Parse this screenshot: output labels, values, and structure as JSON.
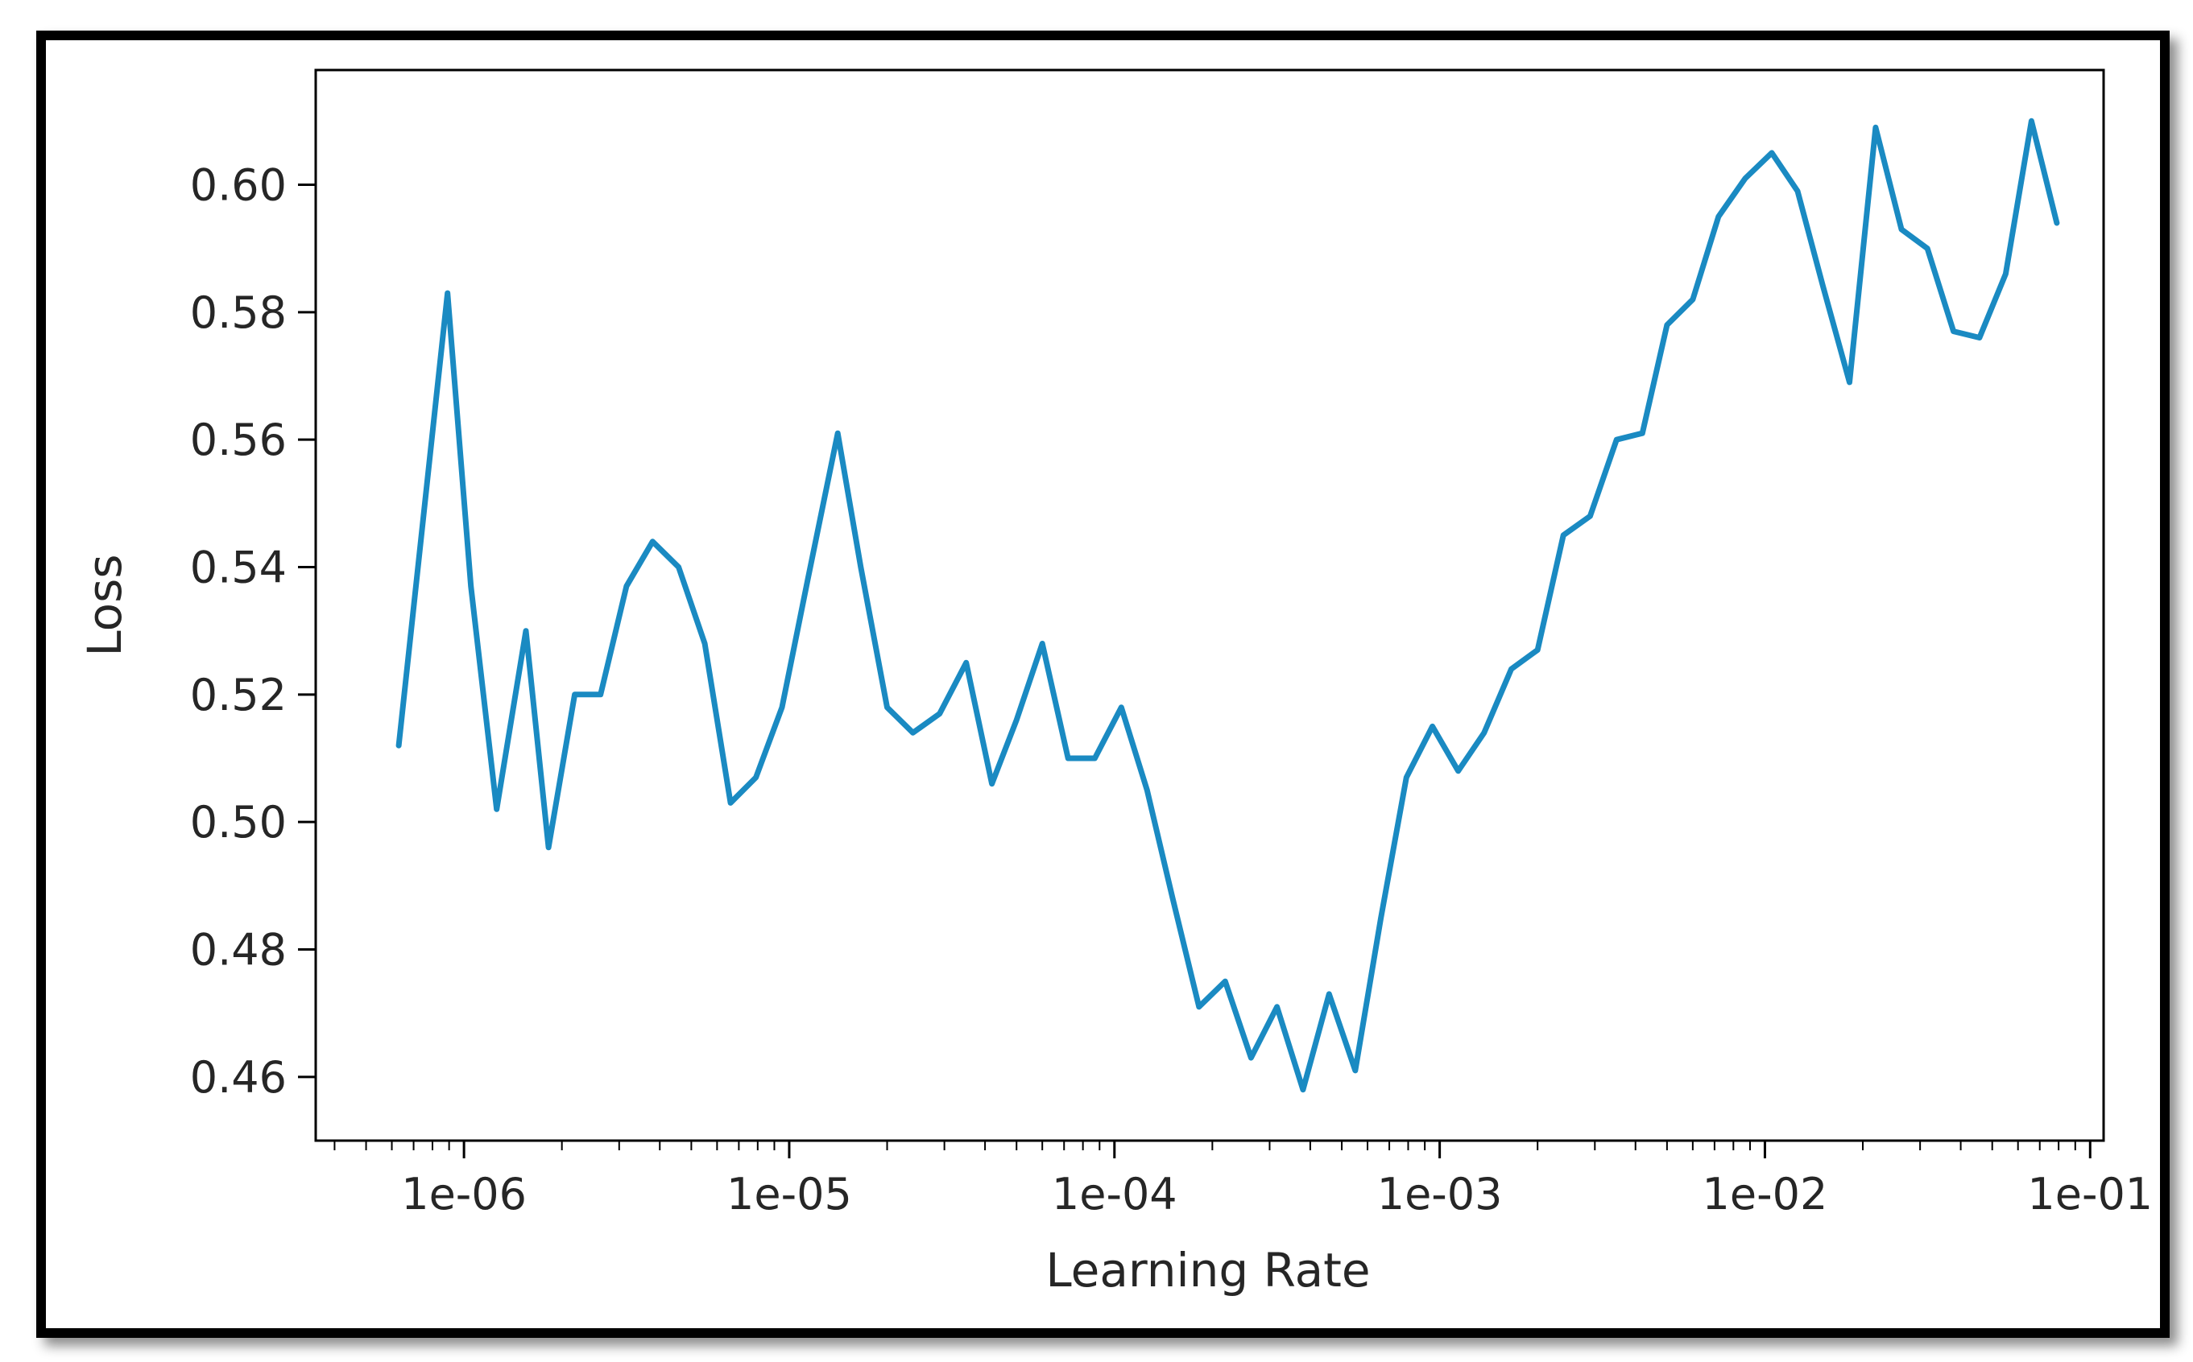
{
  "chart_data": {
    "type": "line",
    "xlabel": "Learning Rate",
    "ylabel": "Loss",
    "x_scale": "log",
    "xlim": [
      3.5e-07,
      0.11
    ],
    "ylim": [
      0.45,
      0.618
    ],
    "x_ticks": [
      {
        "value": 1e-06,
        "label": "1e-06"
      },
      {
        "value": 1e-05,
        "label": "1e-05"
      },
      {
        "value": 0.0001,
        "label": "1e-04"
      },
      {
        "value": 0.001,
        "label": "1e-03"
      },
      {
        "value": 0.01,
        "label": "1e-02"
      },
      {
        "value": 0.1,
        "label": "1e-01"
      }
    ],
    "y_ticks": [
      {
        "value": 0.46,
        "label": "0.46"
      },
      {
        "value": 0.48,
        "label": "0.48"
      },
      {
        "value": 0.5,
        "label": "0.50"
      },
      {
        "value": 0.52,
        "label": "0.52"
      },
      {
        "value": 0.54,
        "label": "0.54"
      },
      {
        "value": 0.56,
        "label": "0.56"
      },
      {
        "value": 0.58,
        "label": "0.58"
      },
      {
        "value": 0.6,
        "label": "0.60"
      }
    ],
    "grid": false,
    "line_color": "#1a8ac2",
    "series": [
      {
        "x": [
          6.3e-07,
          8.9e-07,
          1.05e-06,
          1.26e-06,
          1.55e-06,
          1.82e-06,
          2.19e-06,
          2.63e-06,
          3.16e-06,
          3.8e-06,
          4.57e-06,
          5.5e-06,
          6.6e-06,
          7.9e-06,
          9.5e-06,
          1.14e-05,
          1.41e-05,
          1.66e-05,
          2e-05,
          2.4e-05,
          2.9e-05,
          3.5e-05,
          4.2e-05,
          5e-05,
          6e-05,
          7.2e-05,
          8.7e-05,
          0.000105,
          0.000126,
          0.000151,
          0.000182,
          0.000219,
          0.000263,
          0.000316,
          0.00038,
          0.000457,
          0.00055,
          0.00066,
          0.00079,
          0.00095,
          0.00114,
          0.00137,
          0.00166,
          0.002,
          0.0024,
          0.0029,
          0.0035,
          0.0042,
          0.005,
          0.006,
          0.0072,
          0.0087,
          0.0105,
          0.0126,
          0.0151,
          0.0182,
          0.0219,
          0.0263,
          0.0316,
          0.038,
          0.0457,
          0.055,
          0.066,
          0.079
        ],
        "y": [
          0.512,
          0.583,
          0.537,
          0.502,
          0.53,
          0.496,
          0.52,
          0.52,
          0.537,
          0.544,
          0.54,
          0.528,
          0.503,
          0.507,
          0.518,
          0.538,
          0.561,
          0.54,
          0.518,
          0.514,
          0.517,
          0.525,
          0.506,
          0.516,
          0.528,
          0.51,
          0.51,
          0.518,
          0.505,
          0.488,
          0.471,
          0.475,
          0.463,
          0.471,
          0.458,
          0.473,
          0.461,
          0.485,
          0.507,
          0.515,
          0.508,
          0.514,
          0.524,
          0.527,
          0.545,
          0.548,
          0.56,
          0.561,
          0.578,
          0.582,
          0.595,
          0.601,
          0.605,
          0.599,
          0.584,
          0.569,
          0.609,
          0.593,
          0.59,
          0.577,
          0.576,
          0.586,
          0.61,
          0.594
        ]
      }
    ]
  }
}
